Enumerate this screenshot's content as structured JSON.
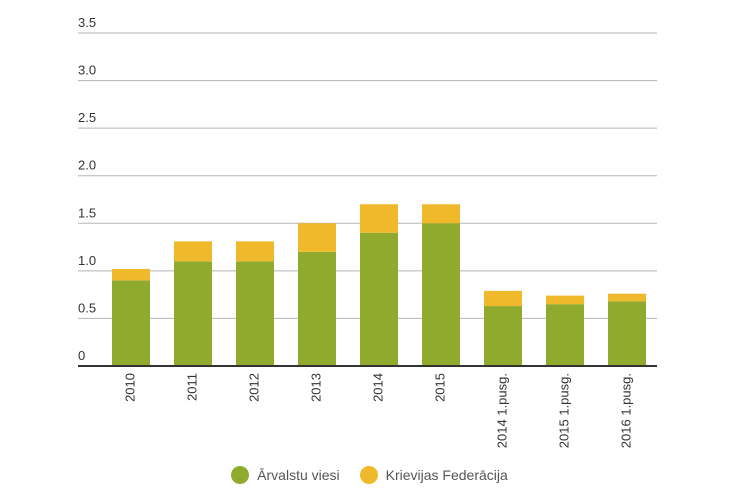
{
  "chart_data": {
    "type": "bar",
    "stacked": true,
    "categories": [
      "2010",
      "2011",
      "2012",
      "2013",
      "2014",
      "2015",
      "2014 1.pusg.",
      "2015 1.pusg.",
      "2016 1.pusg."
    ],
    "series": [
      {
        "name": "Ārvalstu viesi",
        "color": "#8faa2d",
        "values": [
          0.9,
          1.1,
          1.1,
          1.2,
          1.4,
          1.5,
          0.63,
          0.65,
          0.68
        ]
      },
      {
        "name": "Krievijas Federācija",
        "color": "#f0b92b",
        "values": [
          0.12,
          0.21,
          0.21,
          0.3,
          0.3,
          0.2,
          0.16,
          0.09,
          0.08
        ]
      }
    ],
    "yticks": [
      "0",
      "0.5",
      "1.0",
      "1.5",
      "2.0",
      "2.5",
      "3.0",
      "3.5"
    ],
    "ylim": [
      0,
      3.5
    ],
    "grid": true,
    "legend_position": "bottom"
  }
}
